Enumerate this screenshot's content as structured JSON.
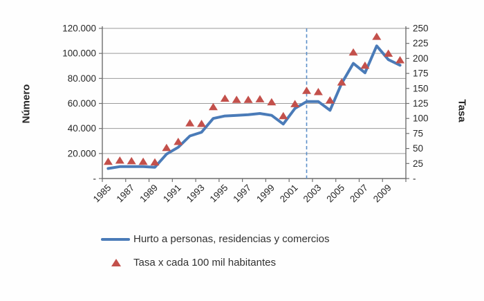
{
  "chart_data": {
    "type": "line",
    "x": [
      1985,
      1986,
      1987,
      1988,
      1989,
      1990,
      1991,
      1992,
      1993,
      1994,
      1995,
      1996,
      1997,
      1998,
      1999,
      2000,
      2001,
      2002,
      2003,
      2004,
      2005,
      2006,
      2007,
      2008,
      2009,
      2010
    ],
    "x_axis": {
      "tick_labels": [
        "1985",
        "1987",
        "1989",
        "1991",
        "1993",
        "1995",
        "1997",
        "1999",
        "2001",
        "2003",
        "2005",
        "2007",
        "2009"
      ],
      "range": [
        1984.5,
        2010.5
      ]
    },
    "left_axis": {
      "title": "Número",
      "min": 0,
      "max": 120000,
      "tick_values": [
        120000,
        100000,
        80000,
        60000,
        40000,
        20000,
        0
      ],
      "tick_labels": [
        "120.000",
        "100.000",
        "80.000",
        "60.000",
        "40.000",
        "20.000",
        "-"
      ]
    },
    "right_axis": {
      "title": "Tasa",
      "min": 0,
      "max": 250,
      "tick_values": [
        250,
        225,
        200,
        175,
        150,
        125,
        100,
        75,
        50,
        25,
        0
      ],
      "tick_labels": [
        "250",
        "225",
        "200",
        "175",
        "150",
        "125",
        "100",
        "75",
        "50",
        "25",
        "-"
      ]
    },
    "grid": "horizontal",
    "legend_position": "bottom",
    "series": [
      {
        "name": "Hurto a personas, residencias y comercios",
        "type": "line",
        "axis": "left",
        "color": "#4a7bb8",
        "values": [
          8000,
          9500,
          9500,
          9500,
          9000,
          19500,
          25000,
          34000,
          37000,
          48000,
          50000,
          50500,
          51000,
          52000,
          50500,
          43500,
          56000,
          61500,
          61500,
          54500,
          76000,
          92000,
          84500,
          106000,
          95000,
          90500
        ]
      },
      {
        "name": "Tasa x cada 100 mil habitantes",
        "type": "scatter",
        "marker": "triangle",
        "axis": "right",
        "color": "#c3504b",
        "values": [
          28,
          30,
          29,
          28,
          27,
          51,
          61,
          92,
          91,
          119,
          133,
          131,
          131,
          132,
          127,
          104,
          124,
          146,
          144,
          130,
          160,
          210,
          188,
          236,
          208,
          197
        ]
      }
    ],
    "reference_line": {
      "x": 2002,
      "style": "dashed",
      "color": "#5b8fc9"
    }
  },
  "legend": {
    "items": [
      {
        "label": "Hurto a personas, residencias y comercios",
        "marker": "line"
      },
      {
        "label": "Tasa x cada 100 mil habitantes",
        "marker": "triangle"
      }
    ]
  },
  "colors": {
    "line": "#4a7bb8",
    "marker": "#c3504b",
    "grid": "#9a9a9a",
    "axis": "#6e6e6e",
    "text": "#262626",
    "dashed": "#5b8fc9"
  }
}
